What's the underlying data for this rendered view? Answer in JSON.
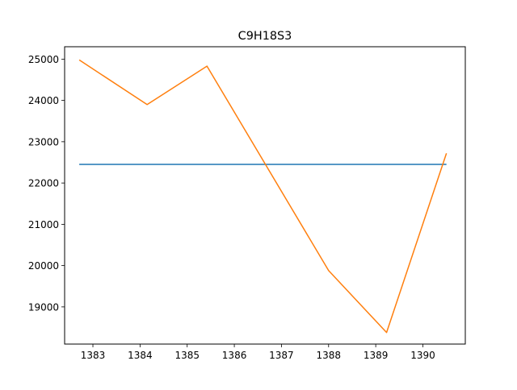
{
  "chart_data": {
    "type": "line",
    "title": "C9H18S3",
    "xlabel": "",
    "ylabel": "",
    "xlim": [
      1382.4,
      1390.9
    ],
    "ylim": [
      18100,
      25300
    ],
    "xticks": [
      1383,
      1384,
      1385,
      1386,
      1387,
      1388,
      1389,
      1390
    ],
    "yticks": [
      19000,
      20000,
      21000,
      22000,
      23000,
      24000,
      25000
    ],
    "grid": false,
    "legend": "none",
    "series": [
      {
        "color": "#1f77b4",
        "x": [
          1382.71,
          1390.5
        ],
        "y": [
          22450,
          22450
        ]
      },
      {
        "color": "#ff7f0e",
        "x": [
          1382.71,
          1384.15,
          1385.42,
          1388.0,
          1389.23,
          1390.5
        ],
        "y": [
          24980,
          23900,
          24830,
          19880,
          18380,
          22720
        ]
      }
    ]
  }
}
